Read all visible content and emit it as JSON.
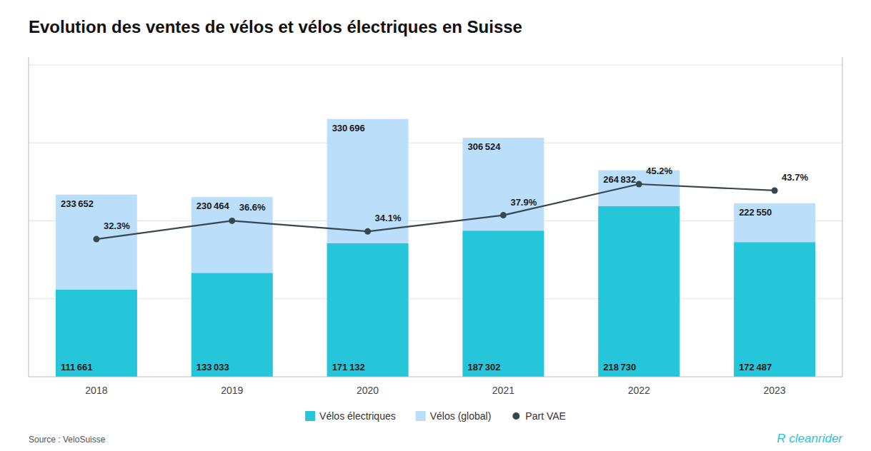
{
  "chart_data": {
    "type": "bar",
    "title": "Evolution des ventes de vélos et vélos électriques en Suisse",
    "categories": [
      "2018",
      "2019",
      "2020",
      "2021",
      "2022",
      "2023"
    ],
    "series": [
      {
        "name": "Vélos électriques",
        "type": "bar",
        "color": "#26C6DA",
        "values": [
          111661,
          133033,
          171132,
          187302,
          218730,
          172487
        ],
        "value_labels": [
          "111 661",
          "133 033",
          "171 132",
          "187 302",
          "218 730",
          "172 487"
        ]
      },
      {
        "name": "Vélos (global)",
        "type": "bar",
        "color": "#BBDEFB",
        "values": [
          233652,
          230464,
          330696,
          306524,
          264832,
          222550
        ],
        "value_labels": [
          "233 652",
          "230 464",
          "330 696",
          "306 524",
          "264 832",
          "222 550"
        ]
      },
      {
        "name": "Part VAE",
        "type": "line",
        "axis": "y2",
        "color": "#37474F",
        "marker": "circle",
        "values": [
          32.3,
          36.6,
          34.1,
          37.9,
          45.2,
          43.7
        ],
        "value_labels": [
          "32.3%",
          "36.6%",
          "34.1%",
          "37.9%",
          "45.2%",
          "43.7%"
        ]
      }
    ],
    "ylim": [
      0,
      410000
    ],
    "yticks": [
      100000,
      200000,
      300000,
      400000
    ],
    "y2lim": [
      0,
      75
    ],
    "grid": true,
    "tick_labels": "x",
    "data_labels": true,
    "annotations": [
      "Source : VeloSuisse",
      "R cleanrider"
    ]
  }
}
